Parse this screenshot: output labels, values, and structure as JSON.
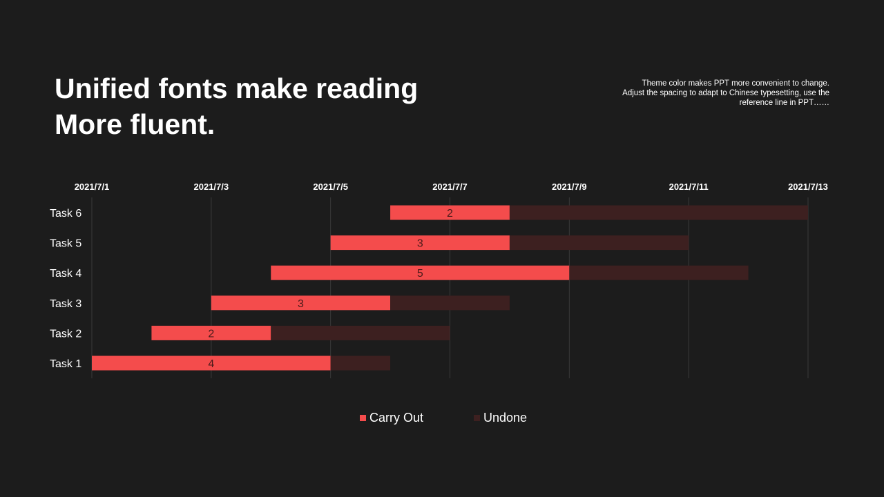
{
  "header": {
    "title_line1": "Unified fonts make reading",
    "title_line2": "More fluent.",
    "subtitle_line1": "Theme color makes PPT more convenient to change.",
    "subtitle_line2": "Adjust the spacing to adapt to Chinese typesetting, use the",
    "subtitle_line3": "reference line in PPT……"
  },
  "colors": {
    "background": "#1c1c1c",
    "carry_out": "#f44c4c",
    "undone": "#3d2020",
    "grid": "#3a3a3a",
    "text": "#ffffff",
    "data_label": "#4a1a1a"
  },
  "chart_data": {
    "type": "bar",
    "orientation": "horizontal-stacked-gantt",
    "x_axis_position": "top",
    "x_ticks": [
      "2021/7/1",
      "2021/7/3",
      "2021/7/5",
      "2021/7/7",
      "2021/7/9",
      "2021/7/11",
      "2021/7/13"
    ],
    "xlim": [
      "2021/7/1",
      "2021/7/13"
    ],
    "categories": [
      "Task 6",
      "Task 5",
      "Task 4",
      "Task 3",
      "Task 2",
      "Task 1"
    ],
    "start_dates": [
      "2021/7/6",
      "2021/7/5",
      "2021/7/4",
      "2021/7/3",
      "2021/7/2",
      "2021/7/1"
    ],
    "series": [
      {
        "name": "Carry Out",
        "values": [
          2,
          3,
          5,
          3,
          2,
          4
        ]
      },
      {
        "name": "Undone",
        "values": [
          5,
          3,
          3,
          2,
          3,
          1
        ]
      }
    ],
    "data_labels": [
      "2",
      "3",
      "5",
      "3",
      "2",
      "4"
    ],
    "grid": true,
    "legend": "bottom-center"
  }
}
